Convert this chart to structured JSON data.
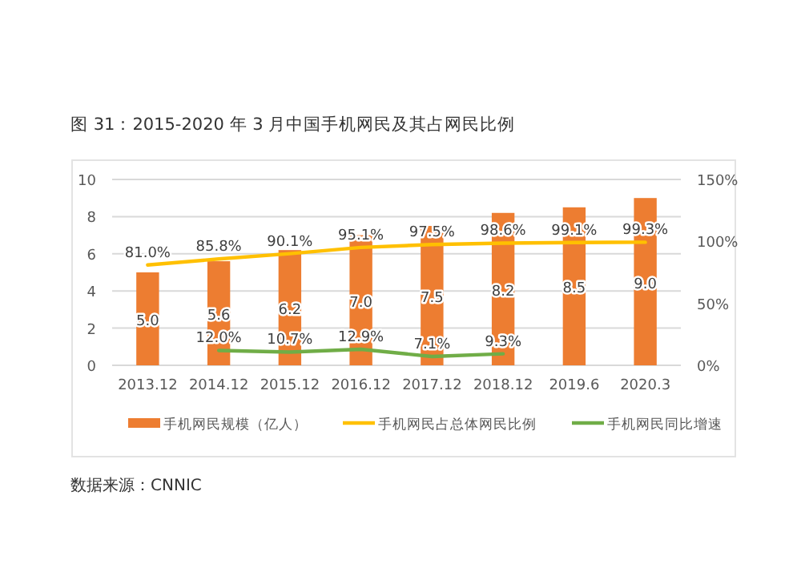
{
  "chart_data": {
    "type": "bar",
    "title": "图 31：2015-2020 年 3 月中国手机网民及其占网民比例",
    "categories": [
      "2013.12",
      "2014.12",
      "2015.12",
      "2016.12",
      "2017.12",
      "2018.12",
      "2019.6",
      "2020.3"
    ],
    "series": [
      {
        "name": "手机网民规模（亿人）",
        "color": "#ed7d31",
        "values": [
          5.0,
          5.6,
          6.2,
          7.0,
          7.5,
          8.2,
          8.5,
          9.0
        ],
        "value_labels": [
          "5.0",
          "5.6",
          "6.2",
          "7.0",
          "7.5",
          "8.2",
          "8.5",
          "9.0"
        ]
      },
      {
        "name": "手机网民占总体网民比例",
        "type": "line",
        "axis": "y2",
        "color": "#ffc000",
        "values": [
          81.0,
          85.8,
          90.1,
          95.1,
          97.5,
          98.6,
          99.1,
          99.3
        ],
        "value_labels": [
          "81.0%",
          "85.8%",
          "90.1%",
          "95.1%",
          "97.5%",
          "98.6%",
          "99.1%",
          "99.3%"
        ]
      },
      {
        "name": "手机网民同比增速",
        "type": "line",
        "axis": "y2",
        "color": "#70ad47",
        "values": [
          null,
          12.0,
          10.7,
          12.9,
          7.1,
          9.3,
          null,
          null
        ],
        "value_labels": [
          null,
          "12.0%",
          "10.7%",
          "12.9%",
          "7.1%",
          "9.3%",
          null,
          null
        ]
      }
    ],
    "ylim": [
      0,
      10
    ],
    "yticks": [
      0,
      2,
      4,
      6,
      8,
      10
    ],
    "y2lim": [
      0,
      150
    ],
    "y2ticks": [
      {
        "value": 0,
        "label": "0%"
      },
      {
        "value": 50,
        "label": "50%"
      },
      {
        "value": 100,
        "label": "100%"
      },
      {
        "value": 150,
        "label": "150%"
      }
    ],
    "grid": "y",
    "legend": "bottom",
    "marker": "none",
    "line_style": "solid",
    "annotations": [
      "数据来源：CNNIC"
    ]
  }
}
